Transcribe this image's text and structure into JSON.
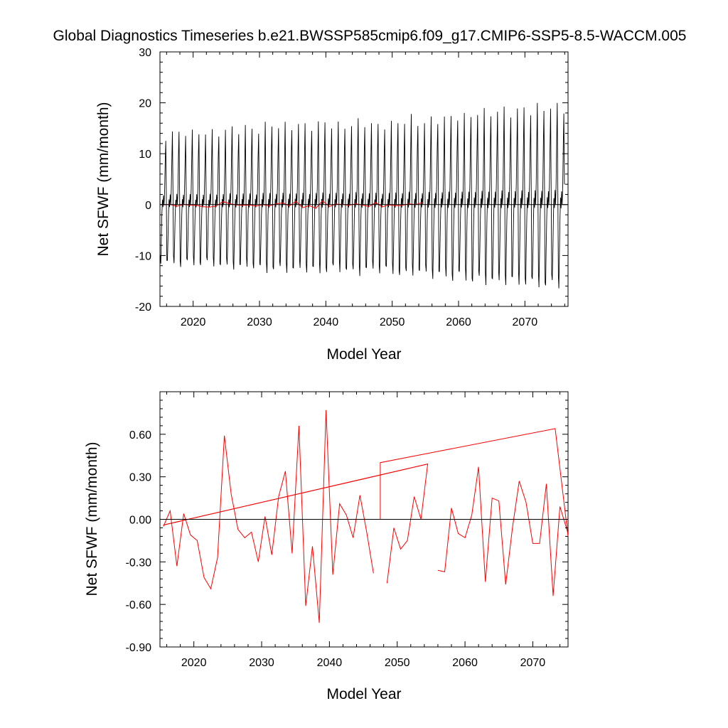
{
  "title": "Global Diagnostics Timeseries b.e21.BWSSP585cmip6.f09_g17.CMIP6-SSP5-8.5-WACCM.005",
  "colors": {
    "monthly": "#000000",
    "annual": "#ff0000",
    "axis": "#000000",
    "zero_line": "#000000"
  },
  "chart_data": [
    {
      "type": "line",
      "name": "monthly-panel",
      "xlabel": "Model Year",
      "ylabel": "Net SFWF (mm/month)",
      "xlim": [
        2015,
        2076.5
      ],
      "ylim": [
        -20,
        30
      ],
      "xticks": [
        2020,
        2030,
        2040,
        2050,
        2060,
        2070
      ],
      "xtick_labels": [
        "2020",
        "2030",
        "2040",
        "2050",
        "2060",
        "2070"
      ],
      "yticks": [
        -20,
        -10,
        0,
        10,
        20,
        30
      ],
      "ytick_labels": [
        "-20",
        "-10",
        "0",
        "10",
        "20",
        "30"
      ],
      "reference_line": 0,
      "series": [
        {
          "name": "monthly",
          "color": "#000000",
          "x_start": 2015.04,
          "x_step": 0.08333,
          "seasonal_cycle": [
            -10.5,
            -11.5,
            -7,
            -2,
            1,
            -0.5,
            2,
            0,
            3,
            9,
            14,
            3
          ],
          "annual_amplitude_scale": [
            0.95,
            1.0,
            1.0,
            1.02,
            1.0,
            1.0,
            1.02,
            1.0,
            1.0,
            1.05,
            1.05,
            1.05,
            1.08,
            1.05,
            1.05,
            1.1,
            1.12,
            1.1,
            1.1,
            1.1,
            1.12,
            1.1,
            1.1,
            1.12,
            1.15,
            1.12,
            1.1,
            1.1,
            1.12,
            1.15,
            1.15,
            1.12,
            1.1,
            1.12,
            1.12,
            1.15,
            1.18,
            1.2,
            1.15,
            1.15,
            1.18,
            1.2,
            1.2,
            1.22,
            1.25,
            1.22,
            1.25,
            1.3,
            1.28,
            1.3,
            1.3,
            1.32,
            1.3,
            1.3,
            1.35,
            1.32,
            1.35,
            1.35,
            1.38,
            1.35,
            1.35
          ],
          "n_years": 61
        },
        {
          "name": "annual-mean",
          "color": "#ff0000",
          "x": [
            2015.5,
            2016.5,
            2017.5,
            2018.5,
            2019.5,
            2020.5,
            2021.5,
            2022.5,
            2023.5,
            2024.5,
            2025.5,
            2026.5,
            2027.5,
            2028.5,
            2029.5,
            2030.5,
            2031.5,
            2032.5,
            2033.5,
            2034.5,
            2035.5,
            2036.5,
            2037.5,
            2038.5,
            2039.5,
            2040.5,
            2041.5,
            2042.5,
            2043.5,
            2044.5,
            2045.5,
            2046.5,
            2047.5,
            2048.5,
            2049.5,
            2050.5,
            2051.5,
            2052.5,
            2053.5,
            2054.5
          ],
          "values": [
            -0.05,
            0.06,
            -0.33,
            0.04,
            -0.11,
            -0.15,
            -0.41,
            -0.49,
            -0.27,
            0.59,
            0.18,
            -0.07,
            -0.13,
            -0.09,
            -0.3,
            0.02,
            -0.25,
            0.16,
            0.34,
            -0.24,
            0.66,
            -0.61,
            -0.19,
            -0.73,
            0.77,
            -0.39,
            0.11,
            0.03,
            -0.13,
            0.17,
            -0.09,
            -0.38,
            0.4,
            -0.45,
            -0.06,
            -0.21,
            -0.15,
            0.16,
            0.0,
            0.39
          ]
        }
      ]
    },
    {
      "type": "line",
      "name": "annual-panel",
      "xlabel": "Model Year",
      "ylabel": "Net SFWF (mm/month)",
      "xlim": [
        2015,
        2075.2
      ],
      "ylim": [
        -0.9,
        0.9
      ],
      "xticks": [
        2020,
        2030,
        2040,
        2050,
        2060,
        2070
      ],
      "xtick_labels": [
        "2020",
        "2030",
        "2040",
        "2050",
        "2060",
        "2070"
      ],
      "yticks": [
        -0.9,
        -0.6,
        -0.3,
        0.0,
        0.3,
        0.6
      ],
      "ytick_labels": [
        "-0.90",
        "-0.60",
        "-0.30",
        "0.00",
        "0.30",
        "0.60"
      ],
      "reference_line": 0,
      "series": [
        {
          "name": "run-segment-1",
          "color": "#ff0000",
          "x": [
            2015.5,
            2016.5,
            2017.5,
            2018.5,
            2019.5,
            2020.5,
            2021.5,
            2022.5,
            2023.5,
            2024.5,
            2025.5,
            2026.5,
            2027.5,
            2028.5,
            2029.5,
            2030.5,
            2031.5,
            2032.5,
            2033.5,
            2034.5,
            2035.5,
            2036.5,
            2037.5,
            2038.5,
            2039.5,
            2040.5,
            2041.5,
            2042.5,
            2043.5,
            2044.5,
            2045.5,
            2046.5
          ],
          "values": [
            -0.05,
            0.06,
            -0.33,
            0.04,
            -0.11,
            -0.15,
            -0.41,
            -0.49,
            -0.27,
            0.59,
            0.18,
            -0.07,
            -0.13,
            -0.09,
            -0.3,
            0.02,
            -0.25,
            0.16,
            0.34,
            -0.24,
            0.66,
            -0.61,
            -0.19,
            -0.73,
            0.77,
            -0.39,
            0.11,
            0.03,
            -0.13,
            0.17,
            -0.09,
            -0.38
          ]
        },
        {
          "name": "run-segment-2",
          "color": "#ff0000",
          "x": [
            2048.5,
            2049.5,
            2050.5,
            2051.5,
            2052.5,
            2053.5,
            2054.5,
            2015.5
          ],
          "values": [
            -0.45,
            -0.06,
            -0.21,
            -0.15,
            0.16,
            0.0,
            0.39,
            -0.04
          ]
        },
        {
          "name": "trend-line",
          "color": "#ff0000",
          "x": [
            2015.5,
            2054.5
          ],
          "values": [
            -0.04,
            0.39
          ]
        },
        {
          "name": "run-segment-3",
          "color": "#ff0000",
          "x": [
            2047.5,
            2047.5,
            2073.3,
            2075.2
          ],
          "values": [
            0.0,
            0.4,
            0.64,
            -0.12
          ]
        },
        {
          "name": "run-segment-4",
          "color": "#ff0000",
          "x": [
            2056,
            2057,
            2058,
            2059,
            2060,
            2061,
            2062,
            2063,
            2064,
            2065,
            2066,
            2067,
            2068,
            2069,
            2070,
            2071,
            2072,
            2073,
            2074,
            2075.2
          ],
          "values": [
            -0.36,
            -0.37,
            0.08,
            -0.1,
            -0.13,
            0.03,
            0.37,
            -0.44,
            0.15,
            0.13,
            -0.46,
            -0.06,
            0.27,
            0.12,
            -0.17,
            -0.17,
            0.25,
            -0.54,
            0.09,
            -0.1
          ]
        }
      ]
    }
  ]
}
